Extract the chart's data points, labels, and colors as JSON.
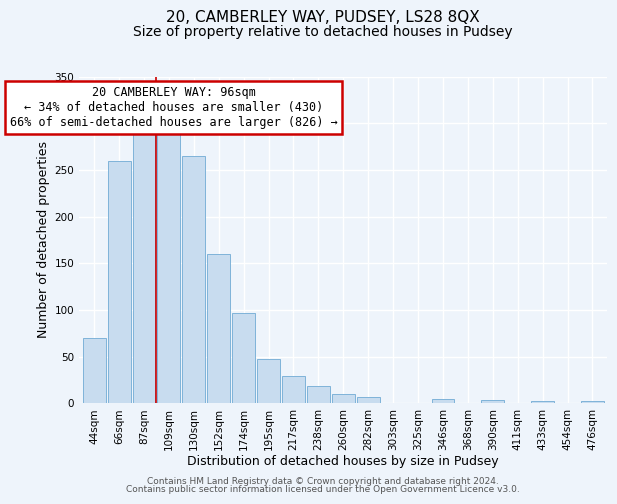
{
  "title": "20, CAMBERLEY WAY, PUDSEY, LS28 8QX",
  "subtitle": "Size of property relative to detached houses in Pudsey",
  "xlabel": "Distribution of detached houses by size in Pudsey",
  "ylabel": "Number of detached properties",
  "bar_labels": [
    "44sqm",
    "66sqm",
    "87sqm",
    "109sqm",
    "130sqm",
    "152sqm",
    "174sqm",
    "195sqm",
    "217sqm",
    "238sqm",
    "260sqm",
    "282sqm",
    "303sqm",
    "325sqm",
    "346sqm",
    "368sqm",
    "390sqm",
    "411sqm",
    "433sqm",
    "454sqm",
    "476sqm"
  ],
  "bar_values": [
    70,
    260,
    295,
    295,
    265,
    160,
    97,
    48,
    29,
    19,
    10,
    7,
    0,
    0,
    5,
    0,
    4,
    0,
    2,
    0,
    2
  ],
  "bar_color": "#c8dcef",
  "bar_edge_color": "#7fb3d9",
  "red_line_x": 2.5,
  "ylim": [
    0,
    350
  ],
  "yticks": [
    0,
    50,
    100,
    150,
    200,
    250,
    300,
    350
  ],
  "annotation_title": "20 CAMBERLEY WAY: 96sqm",
  "annotation_line1": "← 34% of detached houses are smaller (430)",
  "annotation_line2": "66% of semi-detached houses are larger (826) →",
  "footer_line1": "Contains HM Land Registry data © Crown copyright and database right 2024.",
  "footer_line2": "Contains public sector information licensed under the Open Government Licence v3.0.",
  "background_color": "#eef4fb",
  "plot_bg_color": "#eef4fb",
  "grid_color": "#ffffff",
  "title_fontsize": 11,
  "subtitle_fontsize": 10,
  "axis_label_fontsize": 9,
  "tick_fontsize": 7.5,
  "footer_fontsize": 6.5,
  "annotation_fontsize": 8.5
}
